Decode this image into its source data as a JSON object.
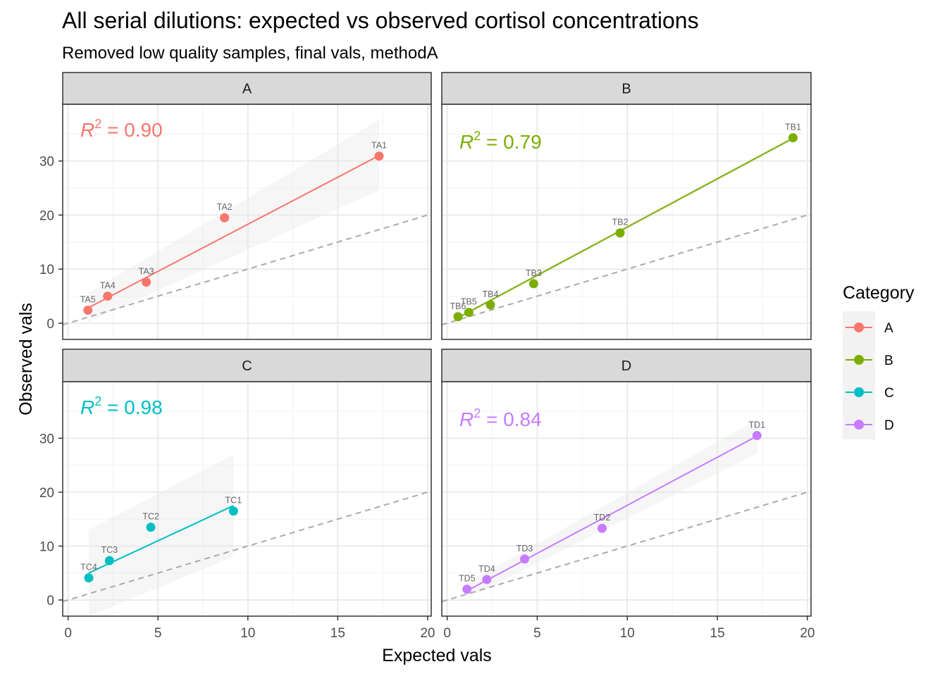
{
  "chart": {
    "title": "All serial dilutions: expected vs observed cortisol concentrations",
    "subtitle": "Removed low quality samples, final vals, methodA",
    "xlabel": "Expected vals",
    "ylabel": "Observed vals",
    "legend_title": "Category"
  },
  "chart_data": {
    "type": "scatter",
    "title": "All serial dilutions: expected vs observed cortisol concentrations",
    "subtitle": "Removed low quality samples, final vals, methodA",
    "xlabel": "Expected vals",
    "ylabel": "Observed vals",
    "xlim": [
      -0.3,
      20.2
    ],
    "ylim": [
      -3,
      40.5
    ],
    "x_ticks": [
      0,
      5,
      10,
      15,
      20
    ],
    "y_ticks": [
      0,
      10,
      20,
      30
    ],
    "grid": true,
    "reference_line": {
      "slope": 1,
      "intercept": 0,
      "style": "dashed",
      "color": "#aaaaaa"
    },
    "legend": {
      "title": "Category",
      "position": "right",
      "entries": [
        "A",
        "B",
        "C",
        "D"
      ]
    },
    "facets": [
      {
        "name": "A",
        "color": "#F8766D",
        "r2_value": "0.90",
        "points": [
          {
            "label": "TA1",
            "x": 17.3,
            "y": 30.9
          },
          {
            "label": "TA2",
            "x": 8.7,
            "y": 19.5
          },
          {
            "label": "TA3",
            "x": 4.35,
            "y": 7.6
          },
          {
            "label": "TA4",
            "x": 2.2,
            "y": 5.0
          },
          {
            "label": "TA5",
            "x": 1.1,
            "y": 2.4
          }
        ],
        "fit": {
          "x0": 1.1,
          "y0": 2.8,
          "x1": 17.3,
          "y1": 31.0
        },
        "band": {
          "x0": 1.1,
          "lo0": 0.2,
          "hi0": 5.6,
          "x1": 17.3,
          "lo1": 24.6,
          "hi1": 37.6
        }
      },
      {
        "name": "B",
        "color": "#7CAE00",
        "r2_value": "0.79",
        "points": [
          {
            "label": "TB1",
            "x": 19.2,
            "y": 34.3
          },
          {
            "label": "TB2",
            "x": 9.6,
            "y": 16.7
          },
          {
            "label": "TB3",
            "x": 4.8,
            "y": 7.3
          },
          {
            "label": "TB4",
            "x": 2.4,
            "y": 3.4
          },
          {
            "label": "TB5",
            "x": 1.2,
            "y": 2.0
          },
          {
            "label": "TB6",
            "x": 0.6,
            "y": 1.2
          }
        ],
        "fit": {
          "x0": 0.6,
          "y0": 1.0,
          "x1": 19.2,
          "y1": 34.2
        },
        "band": {
          "x0": 0.6,
          "lo0": 0.6,
          "hi0": 1.4,
          "x1": 19.2,
          "lo1": 33.7,
          "hi1": 34.7
        }
      },
      {
        "name": "C",
        "color": "#00BFC4",
        "r2_value": "0.98",
        "points": [
          {
            "label": "TC1",
            "x": 9.2,
            "y": 16.5
          },
          {
            "label": "TC2",
            "x": 4.6,
            "y": 13.5
          },
          {
            "label": "TC3",
            "x": 2.3,
            "y": 7.3
          },
          {
            "label": "TC4",
            "x": 1.15,
            "y": 4.1
          }
        ],
        "fit": {
          "x0": 1.15,
          "y0": 5.0,
          "x1": 9.2,
          "y1": 17.5
        },
        "band": {
          "x0": 1.15,
          "lo0": -3.0,
          "hi0": 13.0,
          "x1": 9.2,
          "lo1": 8.0,
          "hi1": 27.0
        }
      },
      {
        "name": "D",
        "color": "#C77CFF",
        "r2_value": "0.84",
        "points": [
          {
            "label": "TD1",
            "x": 17.2,
            "y": 30.5
          },
          {
            "label": "TD2",
            "x": 8.6,
            "y": 13.3
          },
          {
            "label": "TD3",
            "x": 4.3,
            "y": 7.6
          },
          {
            "label": "TD4",
            "x": 2.2,
            "y": 3.8
          },
          {
            "label": "TD5",
            "x": 1.1,
            "y": 2.0
          }
        ],
        "fit": {
          "x0": 1.1,
          "y0": 1.7,
          "x1": 17.2,
          "y1": 30.4
        },
        "band": {
          "x0": 1.1,
          "lo0": 0.3,
          "hi0": 3.1,
          "x1": 17.2,
          "lo1": 27.2,
          "hi1": 33.5
        }
      }
    ]
  }
}
